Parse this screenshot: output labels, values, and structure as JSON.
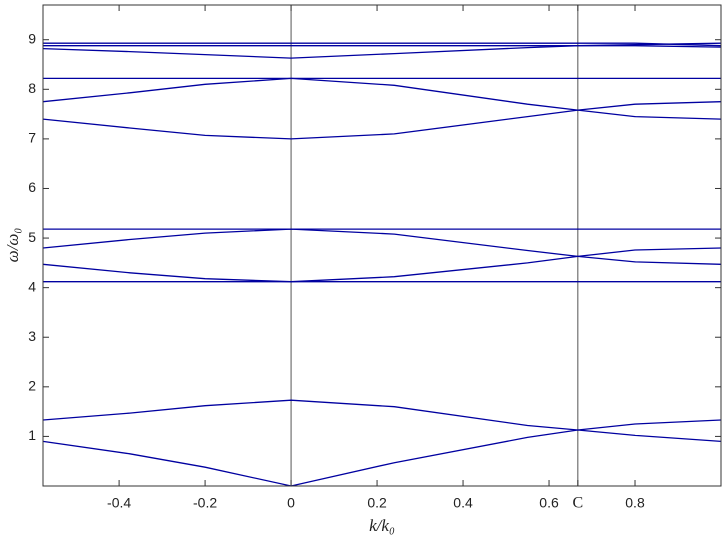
{
  "chart_data": {
    "type": "line",
    "x_label": "k/k₀",
    "y_label": "ω/ω₀",
    "x": [
      -0.577,
      -0.375,
      -0.2,
      0,
      0.24,
      0.55,
      0.667,
      0.8,
      1.0
    ],
    "series": [
      {
        "color": "#0000a0",
        "values": [
          0.9,
          0.65,
          0.38,
          0,
          0.47,
          0.98,
          1.13,
          1.02,
          0.9
        ]
      },
      {
        "color": "#0000a0",
        "values": [
          1.33,
          1.47,
          1.62,
          1.73,
          1.6,
          1.22,
          1.13,
          1.25,
          1.33
        ]
      },
      {
        "color": "#0000a0",
        "values": [
          4.12,
          4.12,
          4.12,
          4.12,
          4.12,
          4.12,
          4.12,
          4.12,
          4.12
        ]
      },
      {
        "color": "#0000a0",
        "values": [
          4.47,
          4.3,
          4.18,
          4.12,
          4.22,
          4.5,
          4.63,
          4.76,
          4.8
        ]
      },
      {
        "color": "#0000a0",
        "values": [
          4.8,
          4.97,
          5.1,
          5.18,
          5.08,
          4.75,
          4.63,
          4.52,
          4.47
        ]
      },
      {
        "color": "#0000a0",
        "values": [
          5.18,
          5.18,
          5.18,
          5.18,
          5.18,
          5.18,
          5.18,
          5.18,
          5.18
        ]
      },
      {
        "color": "#0000a0",
        "values": [
          7.4,
          7.22,
          7.07,
          7.0,
          7.1,
          7.45,
          7.58,
          7.7,
          7.75
        ]
      },
      {
        "color": "#0000a0",
        "values": [
          7.75,
          7.93,
          8.1,
          8.22,
          8.08,
          7.7,
          7.58,
          7.45,
          7.4
        ]
      },
      {
        "color": "#0000a0",
        "values": [
          8.22,
          8.22,
          8.22,
          8.22,
          8.22,
          8.22,
          8.22,
          8.22,
          8.22
        ]
      },
      {
        "color": "#0000a0",
        "values": [
          8.82,
          8.76,
          8.7,
          8.63,
          8.72,
          8.84,
          8.88,
          8.9,
          8.93
        ]
      },
      {
        "color": "#0000a0",
        "values": [
          8.88,
          8.88,
          8.88,
          8.88,
          8.88,
          8.88,
          8.88,
          8.88,
          8.85
        ]
      },
      {
        "color": "#0000a0",
        "values": [
          8.93,
          8.93,
          8.93,
          8.93,
          8.93,
          8.93,
          8.93,
          8.93,
          8.88
        ]
      }
    ],
    "xlim": [
      -0.577,
      1.0
    ],
    "ylim": [
      0,
      9.7
    ],
    "xticks": [
      -0.4,
      -0.2,
      0,
      0.2,
      0.4,
      0.6,
      {
        "value": 0.667,
        "label": "C"
      },
      0.8
    ],
    "yticks": [
      1,
      2,
      3,
      4,
      5,
      6,
      7,
      8,
      9
    ],
    "vlines": [
      0,
      0.667
    ],
    "grid": false
  }
}
